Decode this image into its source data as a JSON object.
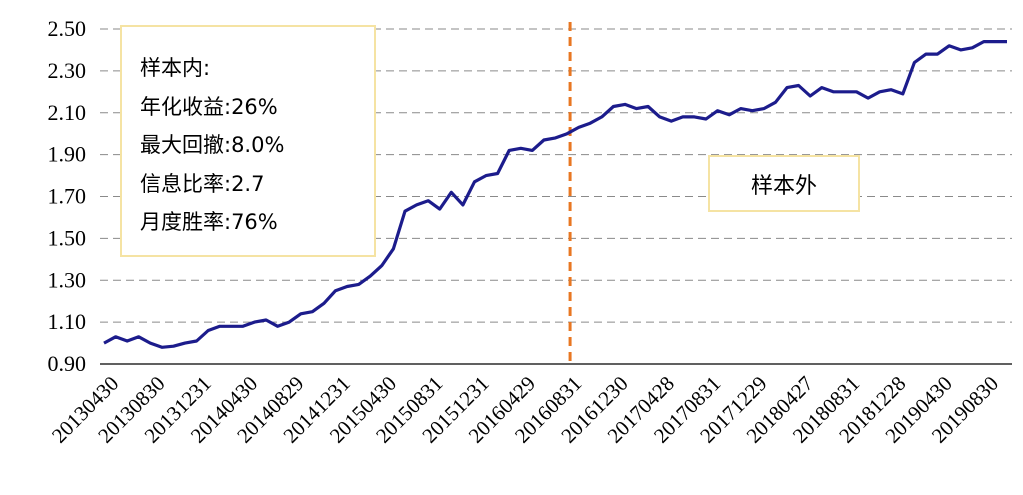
{
  "chart_data": {
    "type": "line",
    "ylim": [
      0.9,
      2.5
    ],
    "yticks": [
      "0.90",
      "1.10",
      "1.30",
      "1.50",
      "1.70",
      "1.90",
      "2.10",
      "2.30",
      "2.50"
    ],
    "xticks": [
      "20130430",
      "20130830",
      "20131231",
      "20140430",
      "20140829",
      "20141231",
      "20150430",
      "20150831",
      "20151231",
      "20160429",
      "20160831",
      "20161230",
      "20170428",
      "20170831",
      "20171229",
      "20180427",
      "20180831",
      "20181228",
      "20190430",
      "20190830"
    ],
    "grid": true,
    "series": [
      {
        "color": "#1c1c8c",
        "values": [
          1.0,
          1.03,
          1.01,
          1.03,
          1.0,
          0.98,
          0.985,
          1.0,
          1.01,
          1.06,
          1.08,
          1.08,
          1.08,
          1.1,
          1.11,
          1.08,
          1.1,
          1.14,
          1.15,
          1.19,
          1.25,
          1.27,
          1.28,
          1.32,
          1.37,
          1.45,
          1.63,
          1.66,
          1.68,
          1.64,
          1.72,
          1.66,
          1.77,
          1.8,
          1.81,
          1.92,
          1.93,
          1.92,
          1.97,
          1.98,
          2.0,
          2.03,
          2.05,
          2.08,
          2.13,
          2.14,
          2.12,
          2.13,
          2.08,
          2.06,
          2.08,
          2.08,
          2.07,
          2.11,
          2.09,
          2.12,
          2.11,
          2.12,
          2.15,
          2.22,
          2.23,
          2.18,
          2.22,
          2.2,
          2.2,
          2.2,
          2.17,
          2.2,
          2.21,
          2.19,
          2.34,
          2.38,
          2.38,
          2.42,
          2.4,
          2.41,
          2.44,
          2.44,
          2.44
        ]
      }
    ],
    "split_marker": {
      "label": "20160831",
      "color": "#e87722",
      "style": "dashed"
    }
  },
  "annotations": {
    "in_sample": {
      "title": "样本内:",
      "annual_return": "年化收益:26%",
      "max_drawdown": "最大回撤:8.0%",
      "info_ratio": "信息比率:2.7",
      "monthly_win_rate": "月度胜率:76%"
    },
    "out_sample": "样本外"
  }
}
